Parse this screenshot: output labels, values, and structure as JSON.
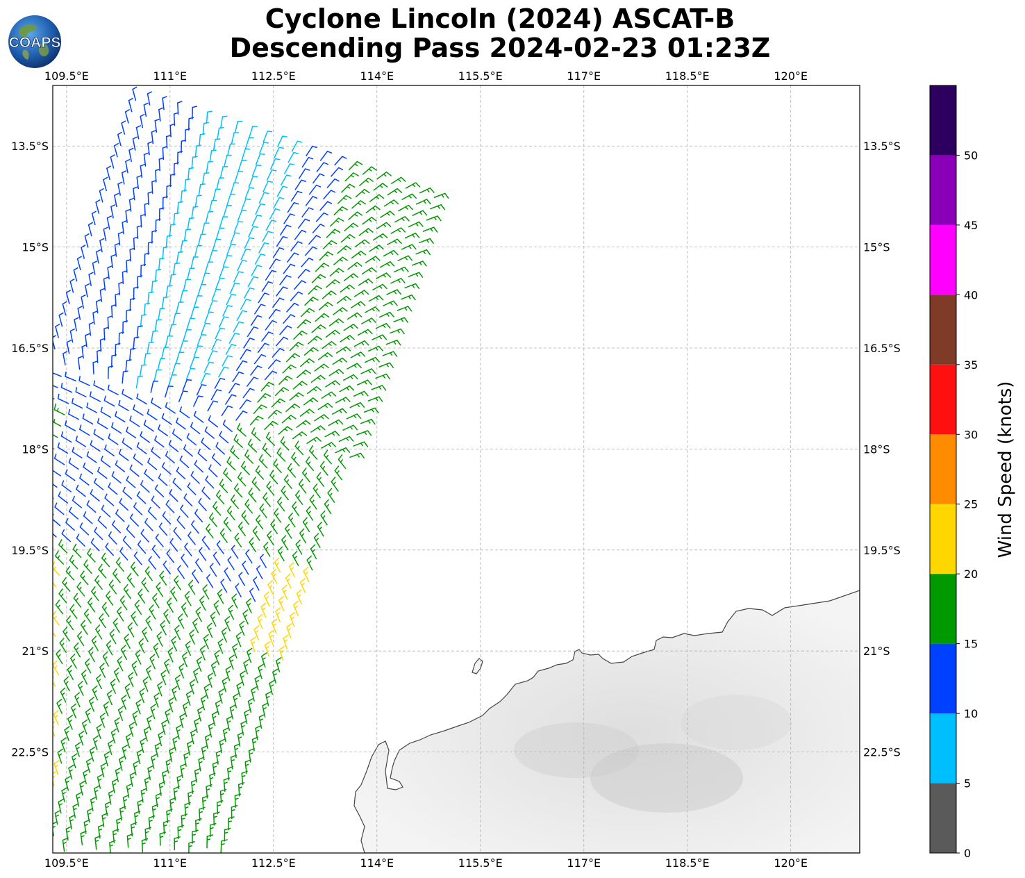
{
  "title": {
    "line1": "Cyclone Lincoln (2024) ASCAT-B",
    "line2": "Descending Pass 2024-02-23 01:23Z"
  },
  "logo": {
    "text": "COAPS",
    "icon": "earth-globe-icon"
  },
  "map": {
    "lon_range": [
      109.3,
      121.0
    ],
    "lat_range": [
      -24.0,
      -12.6
    ],
    "lon_ticks": [
      "109.5°E",
      "111°E",
      "112.5°E",
      "114°E",
      "115.5°E",
      "117°E",
      "118.5°E",
      "120°E"
    ],
    "lat_ticks": [
      "13.5°S",
      "15°S",
      "16.5°S",
      "18°S",
      "19.5°S",
      "21°S",
      "22.5°S"
    ],
    "grid": true,
    "land_color": "#efefef",
    "coastline_color": "#444444"
  },
  "colorbar": {
    "label": "Wind Speed (knots)",
    "ticks": [
      "0",
      "5",
      "10",
      "15",
      "20",
      "25",
      "30",
      "35",
      "40",
      "45",
      "50"
    ],
    "bins": [
      {
        "from": 0,
        "to": 5,
        "color": "#5a5a5a"
      },
      {
        "from": 5,
        "to": 10,
        "color": "#00bfff"
      },
      {
        "from": 10,
        "to": 15,
        "color": "#0040ff"
      },
      {
        "from": 15,
        "to": 20,
        "color": "#009900"
      },
      {
        "from": 20,
        "to": 25,
        "color": "#ffd700"
      },
      {
        "from": 25,
        "to": 30,
        "color": "#ff8c00"
      },
      {
        "from": 30,
        "to": 35,
        "color": "#ff1010"
      },
      {
        "from": 35,
        "to": 40,
        "color": "#7f3a28"
      },
      {
        "from": 40,
        "to": 45,
        "color": "#ff00ff"
      },
      {
        "from": 45,
        "to": 50,
        "color": "#8a00b8"
      },
      {
        "from": 50,
        "to": 55,
        "color": "#2d0060"
      }
    ]
  }
}
